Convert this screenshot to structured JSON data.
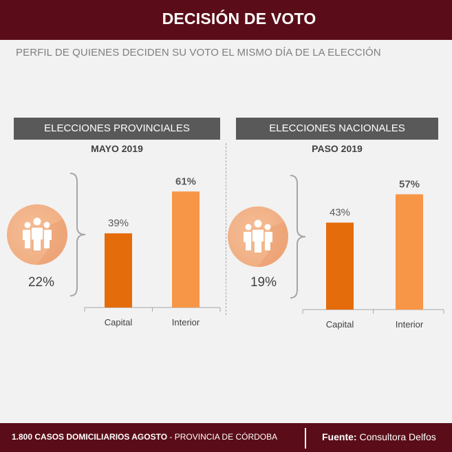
{
  "header": {
    "title": "DECISIÓN DE VOTO"
  },
  "subtitle": "PERFIL DE QUIENES DECIDEN SU VOTO EL MISMO DÍA DE LA ELECCIÓN",
  "colors": {
    "capital": "#e46c0a",
    "interior": "#f79646",
    "header": "#5a0d18",
    "banner": "#595959"
  },
  "chart_data": [
    {
      "type": "bar",
      "title": "ELECCIONES PROVINCIALES",
      "subtitle": "MAYO 2019",
      "total_label": "22%",
      "total_value": 22,
      "categories": [
        "Capital",
        "Interior"
      ],
      "values": [
        39,
        61
      ],
      "value_labels": [
        "39%",
        "61%"
      ],
      "ylim": [
        0,
        100
      ],
      "icon": "people-group-icon"
    },
    {
      "type": "bar",
      "title": "ELECCIONES NACIONALES",
      "subtitle": "PASO 2019",
      "total_label": "19%",
      "total_value": 19,
      "categories": [
        "Capital",
        "Interior"
      ],
      "values": [
        43,
        57
      ],
      "value_labels": [
        "43%",
        "57%"
      ],
      "ylim": [
        0,
        100
      ],
      "icon": "people-group-icon"
    }
  ],
  "footer": {
    "cases": "1.800",
    "cases_label": "CASOS DOMICILIARIOS AGOSTO",
    "separator": "-",
    "region": "PROVINCIA DE CÓRDOBA",
    "source_label": "Fuente:",
    "source": "Consultora Delfos"
  }
}
